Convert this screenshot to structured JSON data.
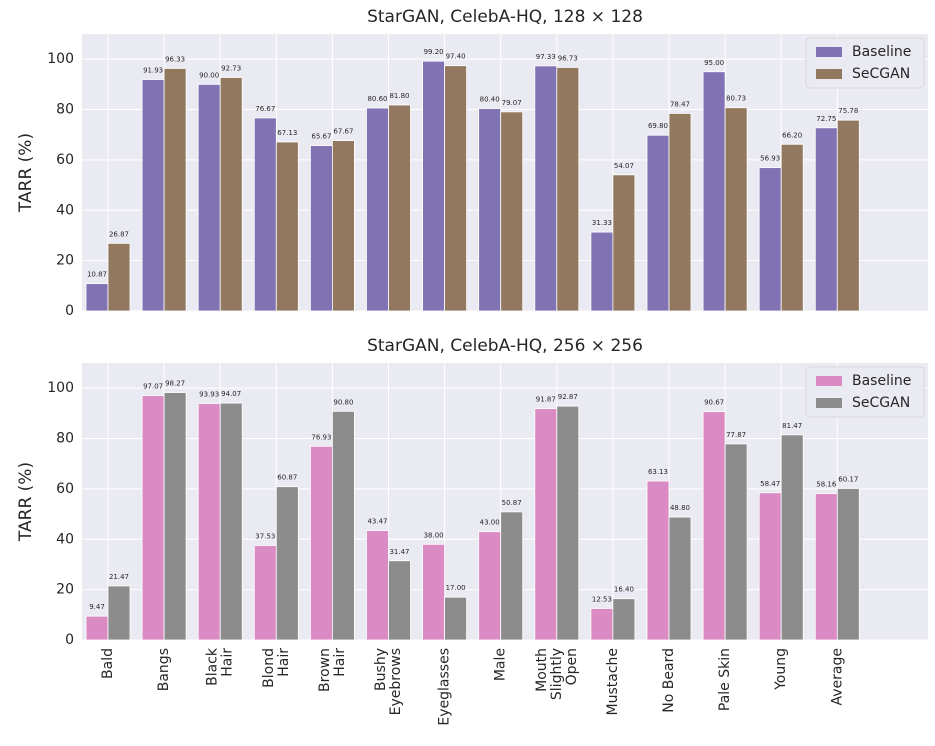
{
  "chart_data": [
    {
      "type": "bar",
      "title": "StarGAN, CelebA-HQ, 128 × 128",
      "y_label": "TARR (%)",
      "ylim": [
        0,
        110
      ],
      "yticks": [
        0,
        20,
        40,
        60,
        80,
        100
      ],
      "grid": true,
      "legend": "upper right",
      "series": [
        {
          "name": "Baseline",
          "color": "#8172b3",
          "values": [
            10.87,
            91.93,
            90,
            76.67,
            65.67,
            80.6,
            99.2,
            80.4,
            97.33,
            31.33,
            69.8,
            95,
            56.93,
            72.75
          ],
          "value_labels": [
            "10.87",
            "91.93",
            "90.00",
            "76.67",
            "65.67",
            "80.60",
            "99.20",
            "80.40",
            "97.33",
            "31.33",
            "69.80",
            "95.00",
            "56.93",
            "72.75"
          ]
        },
        {
          "name": "SeCGAN",
          "color": "#937860",
          "values": [
            26.87,
            96.33,
            92.73,
            67.13,
            67.67,
            81.8,
            97.4,
            79.07,
            96.73,
            54.07,
            78.47,
            80.73,
            66.2,
            75.78
          ],
          "value_labels": [
            "26.87",
            "96.33",
            "92.73",
            "67.13",
            "67.67",
            "81.80",
            "97.40",
            "79.07",
            "96.73",
            "54.07",
            "78.47",
            "80.73",
            "66.20",
            "75.78"
          ]
        }
      ]
    },
    {
      "type": "bar",
      "title": "StarGAN, CelebA-HQ, 256 × 256",
      "y_label": "TARR (%)",
      "categories": [
        "Bald",
        "Bangs",
        "Black\nHair",
        "Blond\nHair",
        "Brown\nHair",
        "Bushy\nEyebrows",
        "Eyeglasses",
        "Male",
        "Mouth\nSlightly\nOpen",
        "Mustache",
        "No Beard",
        "Pale Skin",
        "Young",
        "Average"
      ],
      "ylim": [
        0,
        110
      ],
      "yticks": [
        0,
        20,
        40,
        60,
        80,
        100
      ],
      "grid": true,
      "legend": "upper right",
      "series": [
        {
          "name": "Baseline",
          "color": "#da8bc3",
          "values": [
            9.47,
            97.07,
            93.93,
            37.53,
            76.93,
            43.47,
            38,
            43,
            91.87,
            12.53,
            63.13,
            90.67,
            58.47,
            58.16
          ],
          "value_labels": [
            "9.47",
            "97.07",
            "93.93",
            "37.53",
            "76.93",
            "43.47",
            "38.00",
            "43.00",
            "91.87",
            "12.53",
            "63.13",
            "90.67",
            "58.47",
            "58.16"
          ]
        },
        {
          "name": "SeCGAN",
          "color": "#8c8c8c",
          "values": [
            21.47,
            98.27,
            94.07,
            60.87,
            90.8,
            31.47,
            17,
            50.87,
            92.87,
            16.4,
            48.8,
            77.87,
            81.47,
            60.17
          ],
          "value_labels": [
            "21.47",
            "98.27",
            "94.07",
            "60.87",
            "90.80",
            "31.47",
            "17.00",
            "50.87",
            "92.87",
            "16.40",
            "48.80",
            "77.87",
            "81.47",
            "60.17"
          ]
        }
      ]
    }
  ]
}
